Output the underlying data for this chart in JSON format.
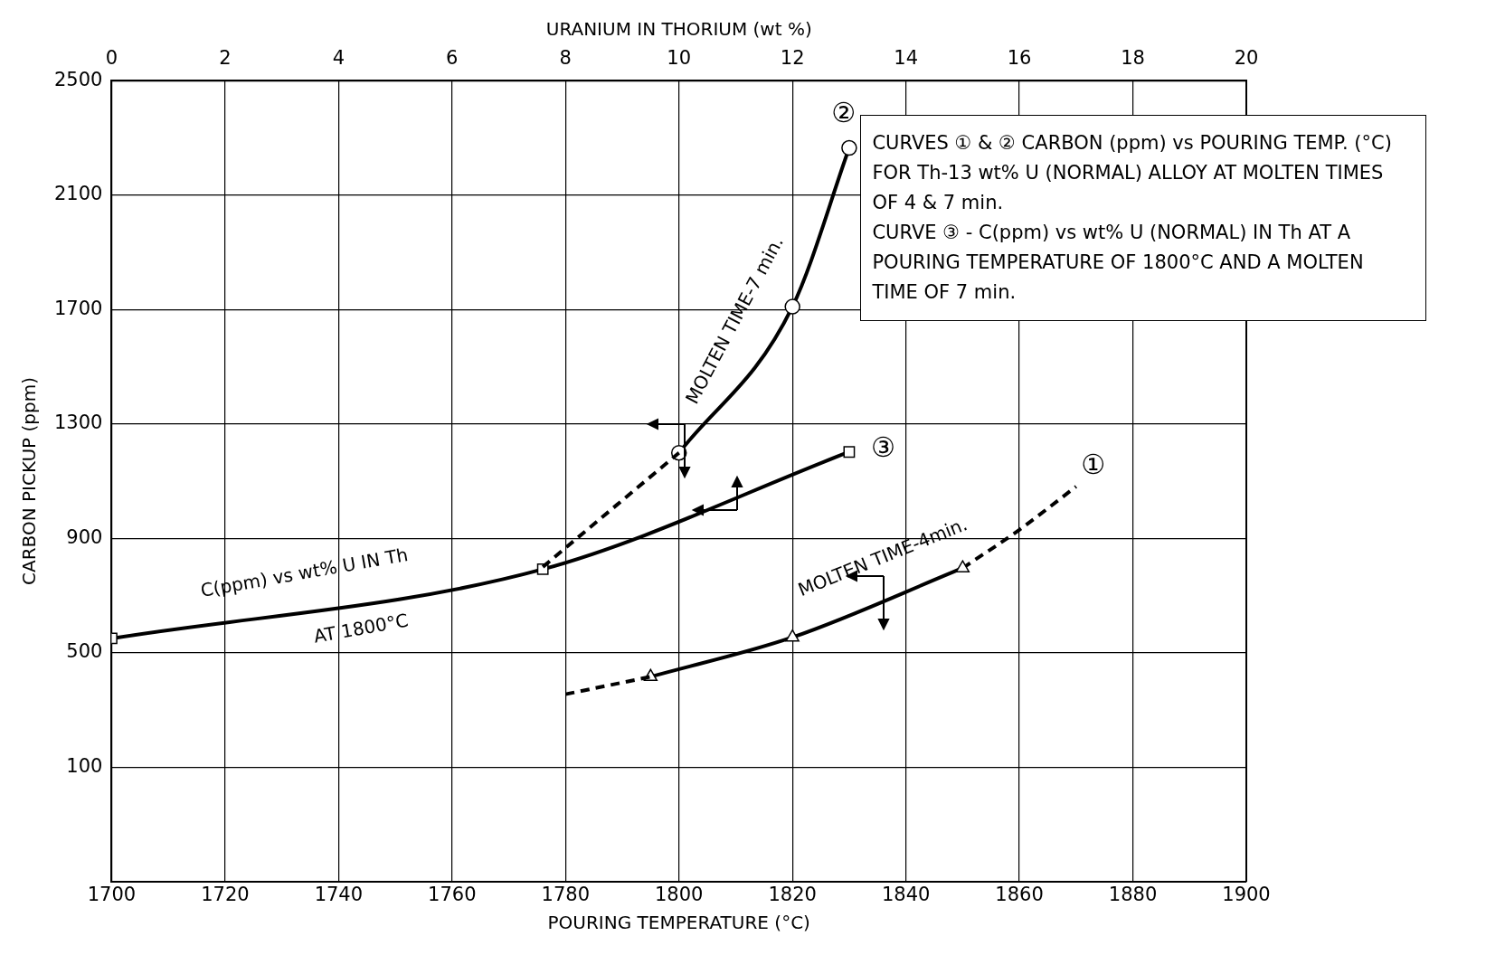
{
  "chart_data": {
    "type": "line",
    "xlabel": "POURING TEMPERATURE (°C)",
    "ylabel": "CARBON PICKUP (ppm)",
    "x2label": "URANIUM IN THORIUM (wt %)",
    "xlim": [
      1700,
      1900
    ],
    "xticks": [
      1700,
      1720,
      1740,
      1760,
      1780,
      1800,
      1820,
      1840,
      1860,
      1880,
      1900
    ],
    "x2lim": [
      0,
      20
    ],
    "x2ticks": [
      0,
      2,
      4,
      6,
      8,
      10,
      12,
      14,
      16,
      18,
      20
    ],
    "ylim": [
      -300,
      2500
    ],
    "yticks": [
      100,
      500,
      900,
      1300,
      1700,
      2100,
      2500
    ],
    "grid": true,
    "legend": false,
    "series": [
      {
        "color": "#000000",
        "x": [
          1780,
          1795
        ],
        "values": [
          355,
          416
        ],
        "line_style": "dashed"
      },
      {
        "color": "#000000",
        "x": [
          1795,
          1820,
          1850
        ],
        "values": [
          416,
          554,
          796
        ],
        "line_style": "solid",
        "marker": "triangle"
      },
      {
        "color": "#000000",
        "x": [
          1850,
          1860,
          1870
        ],
        "values": [
          796,
          930,
          1081
        ],
        "line_style": "dashed"
      },
      {
        "color": "#000000",
        "x": [
          1776,
          1800
        ],
        "values": [
          800,
          1199
        ],
        "line_style": "dashed"
      },
      {
        "color": "#000000",
        "x": [
          1800,
          1820,
          1830
        ],
        "values": [
          1199,
          1710,
          2265
        ],
        "line_style": "solid",
        "marker": "circle"
      },
      {
        "color": "#000000",
        "axis": "x2",
        "x": [
          0,
          7.6,
          13
        ],
        "values": [
          550,
          792,
          1202
        ],
        "line_style": "solid",
        "marker": "square"
      }
    ],
    "annotations": [
      "CURVES ① & ② CARBON (ppm) vs POURING TEMP. (°C) FOR Th-13 wt% U (NORMAL) ALLOY AT MOLTEN TIMES OF 4 & 7 min.",
      "CURVE ③ - C(ppm) vs wt% U (NORMAL) IN Th AT A POURING TEMPERATURE OF 1800°C AND A MOLTEN TIME OF 7 min.",
      "①",
      "②",
      "③",
      "MOLTEN TIME-7 min.",
      "MOLTEN TIME-4min.",
      "C(ppm) vs wt% U IN Th",
      "AT 1800°C"
    ]
  }
}
